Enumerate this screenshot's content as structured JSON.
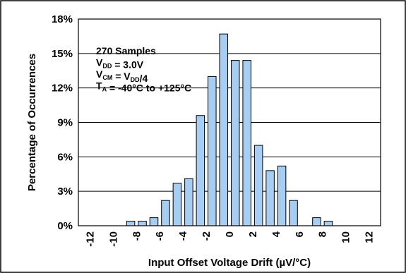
{
  "chart_data": {
    "type": "bar",
    "xlabel": "Input Offset Voltage Drift (µV/°C)",
    "ylabel": "Percentage of Occurrences",
    "ylim": [
      0,
      18
    ],
    "xlim": [
      -13,
      13
    ],
    "y_ticks": [
      "0%",
      "3%",
      "6%",
      "9%",
      "12%",
      "15%",
      "18%"
    ],
    "y_tick_values": [
      0,
      3,
      6,
      9,
      12,
      15,
      18
    ],
    "x_ticks": [
      "-12",
      "-10",
      "-8",
      "-6",
      "-4",
      "-2",
      "0",
      "2",
      "4",
      "6",
      "8",
      "10",
      "12"
    ],
    "x_tick_values": [
      -12,
      -10,
      -8,
      -6,
      -4,
      -2,
      0,
      2,
      4,
      6,
      8,
      10,
      12
    ],
    "x": [
      -8.5,
      -7.5,
      -6.5,
      -5.5,
      -4.5,
      -3.5,
      -2.5,
      -1.5,
      -0.5,
      0.5,
      1.5,
      2.5,
      3.5,
      4.5,
      5.5,
      6.5,
      7.5,
      8.5,
      9.5
    ],
    "values": [
      0.4,
      0.4,
      0.7,
      2.2,
      3.7,
      4.1,
      9.6,
      13.0,
      16.7,
      14.4,
      14.4,
      7.0,
      4.8,
      5.2,
      2.2,
      0.0,
      0.7,
      0.4,
      0.0
    ],
    "bar_color": "#a6cdf2",
    "grid": "horizontal",
    "annotations": [
      [
        {
          "t": "270 Samples"
        }
      ],
      [
        {
          "t": "V"
        },
        {
          "t": "DD",
          "sub": true
        },
        {
          "t": " = 3.0V"
        }
      ],
      [
        {
          "t": "V"
        },
        {
          "t": "CM",
          "sub": true
        },
        {
          "t": " = V"
        },
        {
          "t": "DD",
          "sub": true
        },
        {
          "t": "/4"
        }
      ],
      [
        {
          "t": "T"
        },
        {
          "t": "A",
          "sub": true
        },
        {
          "t": " = -40°C to +125°C"
        }
      ]
    ]
  }
}
